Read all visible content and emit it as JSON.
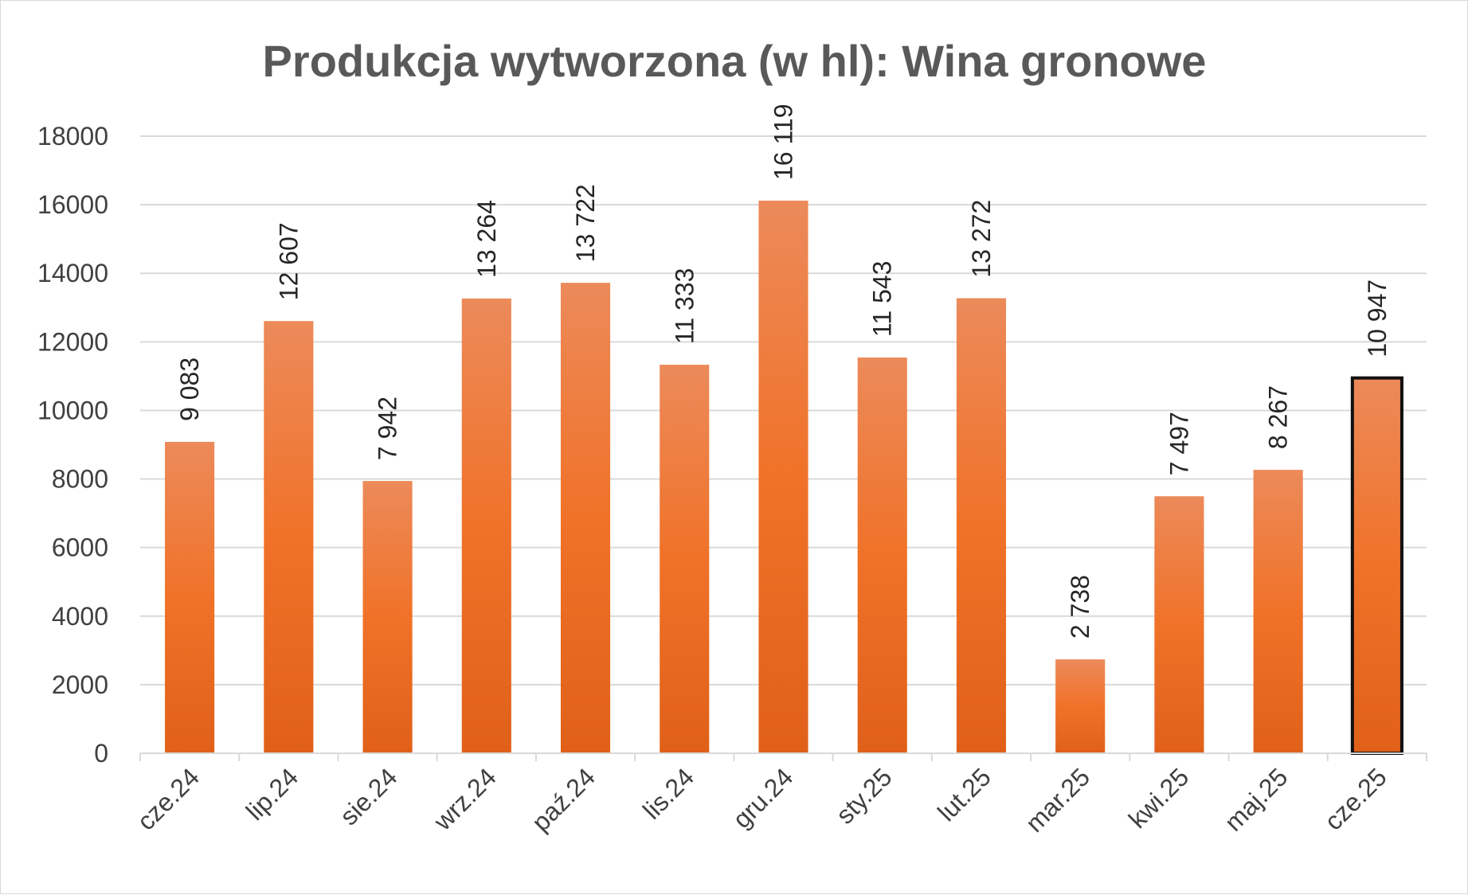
{
  "chart_data": {
    "type": "bar",
    "title": "Produkcja wytworzona (w hl): Wina gronowe",
    "xlabel": "",
    "ylabel": "",
    "categories": [
      "cze.24",
      "lip.24",
      "sie.24",
      "wrz.24",
      "paź.24",
      "lis.24",
      "gru.24",
      "sty.25",
      "lut.25",
      "mar.25",
      "kwi.25",
      "maj.25",
      "cze.25"
    ],
    "values": [
      9083,
      12607,
      7942,
      13264,
      13722,
      11333,
      16119,
      11543,
      13272,
      2738,
      7497,
      8267,
      10947
    ],
    "data_labels": [
      "9 083",
      "12 607",
      "7 942",
      "13 264",
      "13 722",
      "11 333",
      "16 119",
      "11 543",
      "13 272",
      "2 738",
      "7 497",
      "8 267",
      "10 947"
    ],
    "ylim": [
      0,
      18000
    ],
    "yticks": [
      0,
      2000,
      4000,
      6000,
      8000,
      10000,
      12000,
      14000,
      16000,
      18000
    ],
    "grid": true,
    "legend": "none",
    "highlighted_category": "cze.25",
    "colors": {
      "bar_top": "#ec8a5a",
      "bar_mid": "#f07228",
      "bar_bottom": "#e0601a",
      "highlight_border": "#111111",
      "title": "#595959",
      "grid": "#d9d9d9"
    }
  }
}
